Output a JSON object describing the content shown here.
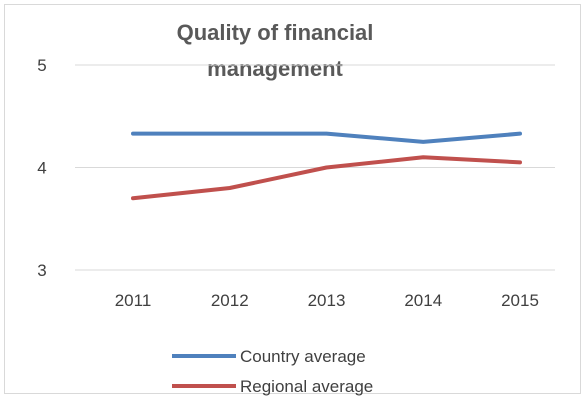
{
  "chart_data": {
    "type": "line",
    "title_lines": [
      "Quality of financial",
      "management"
    ],
    "categories": [
      "2011",
      "2012",
      "2013",
      "2014",
      "2015"
    ],
    "y_ticks": [
      "5",
      "4",
      "3"
    ],
    "ylim": [
      3,
      5
    ],
    "xlabel": "",
    "ylabel": "",
    "grid": true,
    "legend_position": "bottom",
    "series": [
      {
        "name": "Country average",
        "color": "#4f81bd",
        "values": [
          4.33,
          4.33,
          4.33,
          4.25,
          4.33
        ]
      },
      {
        "name": "Regional average",
        "color": "#c0504d",
        "values": [
          3.7,
          3.8,
          4.0,
          4.1,
          4.05
        ]
      }
    ]
  }
}
